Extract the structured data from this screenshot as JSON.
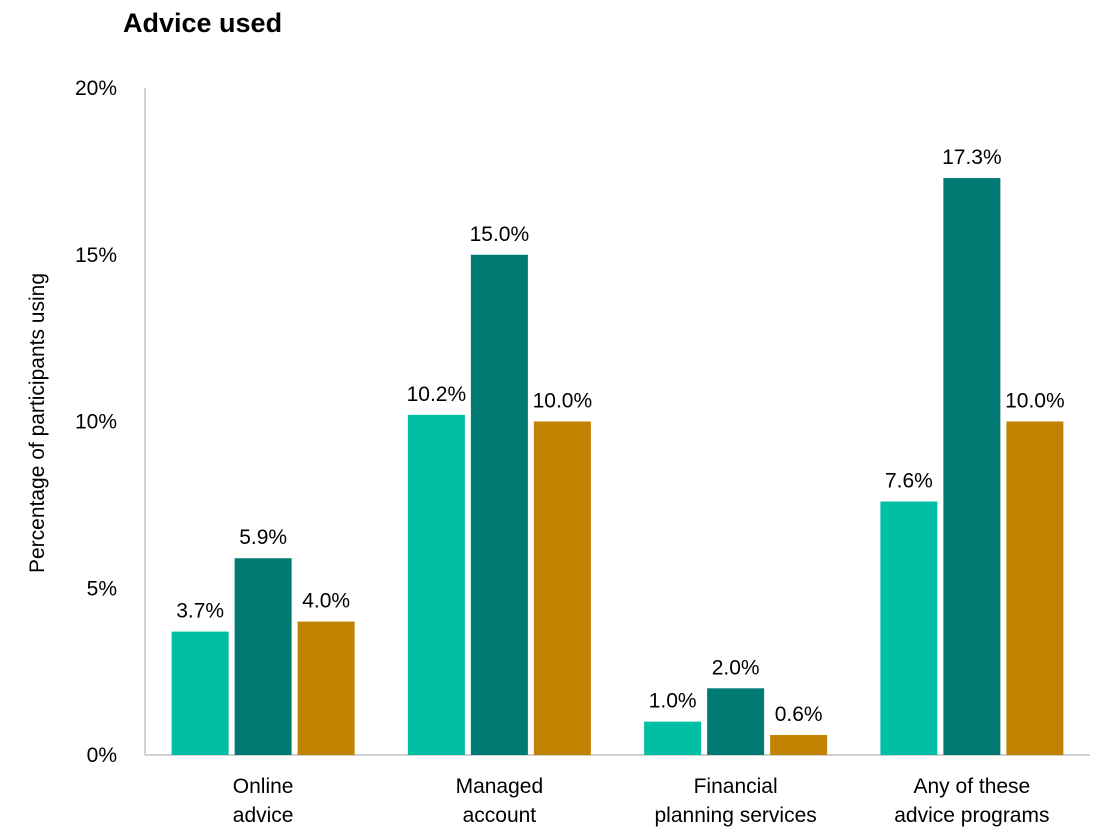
{
  "chart_data": {
    "type": "bar",
    "title": "Advice used",
    "ylabel": "Percentage of participants using",
    "xlabel": "",
    "ylim": [
      0,
      20
    ],
    "yticks": [
      0,
      5,
      10,
      15,
      20
    ],
    "ytick_labels": [
      "0%",
      "5%",
      "10%",
      "15%",
      "20%"
    ],
    "grid": false,
    "legend": "none",
    "categories": [
      [
        "Online",
        "advice"
      ],
      [
        "Managed",
        "account"
      ],
      [
        "Financial",
        "planning services"
      ],
      [
        "Any of these",
        "advice programs"
      ]
    ],
    "series": [
      {
        "color": "#00BFA5",
        "values": [
          3.7,
          10.2,
          1.0,
          7.6
        ],
        "labels": [
          "3.7%",
          "10.2%",
          "1.0%",
          "7.6%"
        ]
      },
      {
        "color": "#007A72",
        "values": [
          5.9,
          15.0,
          2.0,
          17.3
        ],
        "labels": [
          "5.9%",
          "15.0%",
          "2.0%",
          "17.3%"
        ]
      },
      {
        "color": "#C08200",
        "values": [
          4.0,
          10.0,
          0.6,
          10.0
        ],
        "labels": [
          "4.0%",
          "10.0%",
          "0.6%",
          "10.0%"
        ]
      }
    ]
  }
}
